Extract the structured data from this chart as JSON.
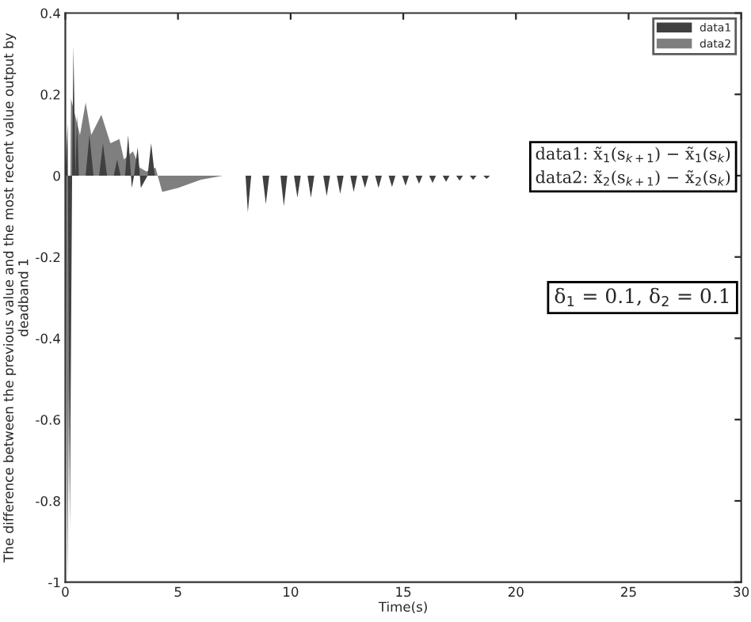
{
  "chart_data": {
    "type": "area",
    "xlabel": "Time(s)",
    "ylabel": "The difference between the previous value and the most recent value output by deadband 1",
    "xlim": [
      0,
      30
    ],
    "ylim": [
      -1,
      0.4
    ],
    "xticks": [
      0,
      5,
      10,
      15,
      20,
      25,
      30
    ],
    "yticks": [
      -1,
      -0.8,
      -0.6,
      -0.4,
      -0.2,
      0,
      0.2,
      0.4
    ],
    "legend": "top right",
    "grid": false,
    "annotations": [
      "data1: x̃$_{1}$(s$_{k+1}$) − x̃$_{1}$(s$_{k}$)\ndata2: x̃$_{2}$(s$_{k+1}$) − x̃$_{2}$(s$_{k}$)",
      "δ$_{1}$ = 0.1, δ$_{2}$ = 0.1"
    ],
    "series": [
      {
        "name": "data2",
        "color": "#7f7f7f",
        "x": [
          0,
          0.1,
          0.25,
          0.65,
          0.9,
          1.15,
          1.6,
          2.0,
          2.4,
          2.6,
          3.0,
          3.3,
          3.6,
          4.0,
          4.3,
          5.0,
          6.0,
          7.0
        ],
        "values": [
          0,
          -1,
          0.19,
          0.1,
          0.18,
          0.1,
          0.15,
          0.08,
          0.09,
          0.04,
          0.06,
          0.02,
          0.01,
          0.02,
          -0.04,
          -0.03,
          -0.01,
          0
        ]
      },
      {
        "name": "data1",
        "color": "#404040",
        "x": [
          0,
          0.1,
          0.2,
          0.3,
          0.36,
          0.45,
          0.52,
          0.6,
          0.9,
          1.07,
          1.25,
          1.5,
          1.67,
          1.85,
          2.15,
          2.3,
          2.45,
          2.65,
          2.79,
          2.95,
          3.05,
          3.21,
          3.35,
          3.65,
          3.81,
          3.97,
          4.1,
          8.0,
          8.1,
          8.25,
          8.75,
          8.9,
          9.05,
          9.55,
          9.7,
          9.85,
          10.15,
          10.3,
          10.45,
          10.75,
          10.9,
          11.05,
          11.45,
          11.6,
          11.75,
          12.05,
          12.2,
          12.35,
          12.65,
          12.8,
          12.95,
          13.15,
          13.3,
          13.45,
          13.75,
          13.9,
          14.05,
          14.35,
          14.5,
          14.65,
          14.95,
          15.1,
          15.25,
          15.55,
          15.7,
          15.85,
          16.15,
          16.3,
          16.45,
          16.75,
          16.9,
          17.05,
          17.35,
          17.5,
          17.65,
          17.95,
          18.1,
          18.25,
          18.55,
          18.7,
          18.85
        ],
        "values": [
          0,
          0.13,
          -0.87,
          0,
          0.32,
          0,
          0.15,
          0,
          0,
          0.1,
          0,
          0,
          0.08,
          0,
          0,
          0.04,
          0,
          0,
          0.1,
          -0.03,
          0,
          0.07,
          -0.03,
          0,
          0.08,
          0,
          0,
          0,
          -0.09,
          0,
          0,
          -0.07,
          0,
          0,
          -0.075,
          0,
          0,
          -0.054,
          0,
          0,
          -0.054,
          0,
          0,
          -0.05,
          0,
          0,
          -0.045,
          0,
          0,
          -0.04,
          0,
          0,
          -0.03,
          0,
          0,
          -0.03,
          0,
          0,
          -0.028,
          0,
          0,
          -0.025,
          0,
          0,
          -0.02,
          0,
          0,
          -0.018,
          0,
          0,
          -0.015,
          0,
          0,
          -0.012,
          0,
          0,
          -0.01,
          0,
          0,
          -0.008,
          0
        ]
      }
    ]
  }
}
